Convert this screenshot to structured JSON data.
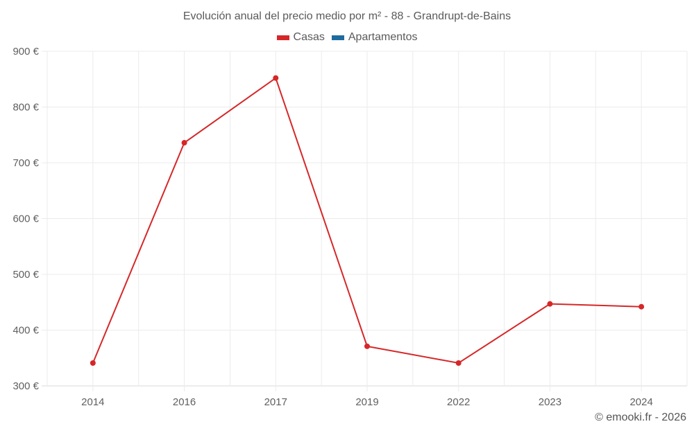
{
  "title": "Evolución anual del precio medio por m² - 88 - Grandrupt-de-Bains",
  "legend": [
    {
      "label": "Casas",
      "color": "#d62728"
    },
    {
      "label": "Apartamentos",
      "color": "#1f6b9e"
    }
  ],
  "credit": "© emooki.fr - 2026",
  "colors": {
    "series_casas": "#d62728",
    "grid": "#ebebeb",
    "axis": "#d9d9d9"
  },
  "chart_data": {
    "type": "line",
    "title": "Evolución anual del precio medio por m² - 88 - Grandrupt-de-Bains",
    "xlabel": "",
    "ylabel": "",
    "categories": [
      "2014",
      "2016",
      "2017",
      "2019",
      "2022",
      "2023",
      "2024"
    ],
    "series": [
      {
        "name": "Casas",
        "color": "#d62728",
        "values": [
          341,
          736,
          852,
          371,
          341,
          447,
          442
        ]
      },
      {
        "name": "Apartamentos",
        "color": "#1f6b9e",
        "values": []
      }
    ],
    "ylim": [
      300,
      900
    ],
    "yticks": [
      300,
      400,
      500,
      600,
      700,
      800,
      900
    ],
    "ytick_labels": [
      "300 €",
      "400 €",
      "500 €",
      "600 €",
      "700 €",
      "800 €",
      "900 €"
    ],
    "grid": true,
    "legend_position": "top"
  }
}
